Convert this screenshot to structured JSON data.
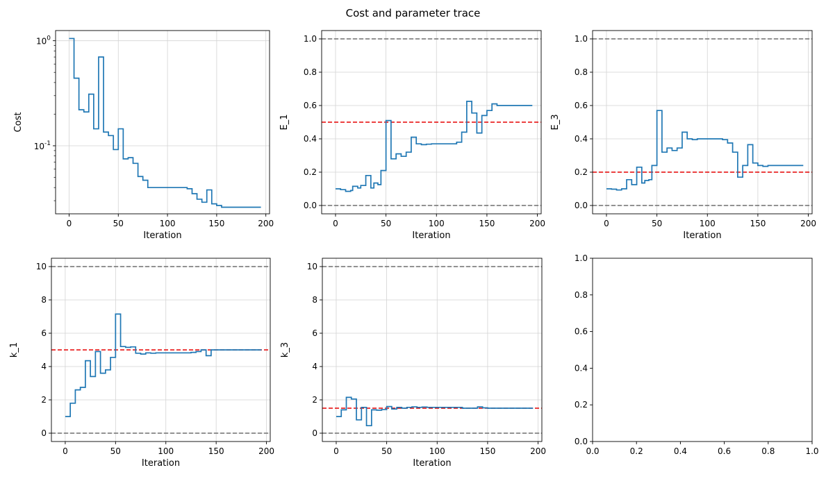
{
  "figure": {
    "title": "Cost and parameter trace"
  },
  "colors": {
    "series": "#1f77b4",
    "target": "#e60000",
    "bound": "#6e6e6e",
    "grid": "#d3d3d3"
  },
  "chart_data": [
    {
      "id": "cost",
      "type": "line",
      "xlabel": "Iteration",
      "ylabel": "Cost",
      "yscale": "log",
      "xlim": [
        -13.75,
        203.75
      ],
      "ylim": [
        0.0225,
        1.25
      ],
      "xticks": [
        0,
        50,
        100,
        150,
        200
      ],
      "xtick_labels": [
        "0",
        "50",
        "100",
        "150",
        "200"
      ],
      "yticks": [
        1.0,
        0.1
      ],
      "ytick_labels": [
        "10^0",
        "10^-1"
      ],
      "grid": true,
      "hlines": [],
      "series": [
        {
          "step": true,
          "points": [
            [
              0,
              1.05
            ],
            [
              5,
              0.44
            ],
            [
              10,
              0.22
            ],
            [
              15,
              0.21
            ],
            [
              20,
              0.31
            ],
            [
              25,
              0.145
            ],
            [
              30,
              0.7
            ],
            [
              35,
              0.135
            ],
            [
              40,
              0.125
            ],
            [
              45,
              0.092
            ],
            [
              50,
              0.145
            ],
            [
              55,
              0.075
            ],
            [
              60,
              0.077
            ],
            [
              65,
              0.068
            ],
            [
              70,
              0.051
            ],
            [
              75,
              0.047
            ],
            [
              80,
              0.04
            ],
            [
              120,
              0.039
            ],
            [
              125,
              0.035
            ],
            [
              130,
              0.031
            ],
            [
              135,
              0.029
            ],
            [
              140,
              0.038
            ],
            [
              145,
              0.028
            ],
            [
              150,
              0.027
            ],
            [
              155,
              0.026
            ],
            [
              195,
              0.026
            ]
          ]
        }
      ]
    },
    {
      "id": "E_1",
      "type": "line",
      "xlabel": "Iteration",
      "ylabel": "E_1",
      "xlim": [
        -13.75,
        203.75
      ],
      "ylim": [
        -0.05,
        1.05
      ],
      "xticks": [
        0,
        50,
        100,
        150,
        200
      ],
      "xtick_labels": [
        "0",
        "50",
        "100",
        "150",
        "200"
      ],
      "yticks": [
        0,
        0.2,
        0.4,
        0.6,
        0.8,
        1.0
      ],
      "ytick_labels": [
        "0.0",
        "0.2",
        "0.4",
        "0.6",
        "0.8",
        "1.0"
      ],
      "grid": true,
      "hlines": [
        {
          "y": 1.0,
          "kind": "bound"
        },
        {
          "y": 0.0,
          "kind": "bound"
        },
        {
          "y": 0.5,
          "kind": "target"
        }
      ],
      "series": [
        {
          "step": true,
          "points": [
            [
              0,
              0.1
            ],
            [
              5,
              0.095
            ],
            [
              10,
              0.085
            ],
            [
              15,
              0.09
            ],
            [
              17,
              0.115
            ],
            [
              22,
              0.105
            ],
            [
              25,
              0.12
            ],
            [
              30,
              0.18
            ],
            [
              35,
              0.105
            ],
            [
              38,
              0.135
            ],
            [
              42,
              0.125
            ],
            [
              45,
              0.21
            ],
            [
              50,
              0.51
            ],
            [
              55,
              0.28
            ],
            [
              60,
              0.31
            ],
            [
              65,
              0.295
            ],
            [
              70,
              0.32
            ],
            [
              75,
              0.41
            ],
            [
              80,
              0.37
            ],
            [
              85,
              0.365
            ],
            [
              90,
              0.368
            ],
            [
              95,
              0.37
            ],
            [
              120,
              0.38
            ],
            [
              125,
              0.44
            ],
            [
              130,
              0.625
            ],
            [
              135,
              0.555
            ],
            [
              140,
              0.435
            ],
            [
              145,
              0.54
            ],
            [
              150,
              0.57
            ],
            [
              155,
              0.61
            ],
            [
              160,
              0.6
            ],
            [
              195,
              0.6
            ]
          ]
        }
      ]
    },
    {
      "id": "E_3",
      "type": "line",
      "xlabel": "Iteration",
      "ylabel": "E_3",
      "xlim": [
        -13.75,
        203.75
      ],
      "ylim": [
        -0.05,
        1.05
      ],
      "xticks": [
        0,
        50,
        100,
        150,
        200
      ],
      "xtick_labels": [
        "0",
        "50",
        "100",
        "150",
        "200"
      ],
      "yticks": [
        0,
        0.2,
        0.4,
        0.6,
        0.8,
        1.0
      ],
      "ytick_labels": [
        "0.0",
        "0.2",
        "0.4",
        "0.6",
        "0.8",
        "1.0"
      ],
      "grid": true,
      "hlines": [
        {
          "y": 1.0,
          "kind": "bound"
        },
        {
          "y": 0.0,
          "kind": "bound"
        },
        {
          "y": 0.2,
          "kind": "target"
        }
      ],
      "series": [
        {
          "step": true,
          "points": [
            [
              0,
              0.1
            ],
            [
              5,
              0.098
            ],
            [
              10,
              0.093
            ],
            [
              15,
              0.1
            ],
            [
              20,
              0.155
            ],
            [
              25,
              0.125
            ],
            [
              30,
              0.23
            ],
            [
              35,
              0.135
            ],
            [
              38,
              0.15
            ],
            [
              42,
              0.155
            ],
            [
              45,
              0.24
            ],
            [
              50,
              0.57
            ],
            [
              55,
              0.32
            ],
            [
              60,
              0.345
            ],
            [
              65,
              0.33
            ],
            [
              70,
              0.345
            ],
            [
              75,
              0.44
            ],
            [
              80,
              0.4
            ],
            [
              85,
              0.395
            ],
            [
              90,
              0.4
            ],
            [
              115,
              0.395
            ],
            [
              120,
              0.375
            ],
            [
              125,
              0.32
            ],
            [
              130,
              0.17
            ],
            [
              135,
              0.24
            ],
            [
              140,
              0.365
            ],
            [
              145,
              0.255
            ],
            [
              150,
              0.24
            ],
            [
              155,
              0.235
            ],
            [
              160,
              0.24
            ],
            [
              195,
              0.24
            ]
          ]
        }
      ]
    },
    {
      "id": "k_1",
      "type": "line",
      "xlabel": "Iteration",
      "ylabel": "k_1",
      "xlim": [
        -13.75,
        203.75
      ],
      "ylim": [
        -0.5,
        10.5
      ],
      "xticks": [
        0,
        50,
        100,
        150,
        200
      ],
      "xtick_labels": [
        "0",
        "50",
        "100",
        "150",
        "200"
      ],
      "yticks": [
        0,
        2,
        4,
        6,
        8,
        10
      ],
      "ytick_labels": [
        "0",
        "2",
        "4",
        "6",
        "8",
        "10"
      ],
      "grid": true,
      "hlines": [
        {
          "y": 10,
          "kind": "bound"
        },
        {
          "y": 0,
          "kind": "bound"
        },
        {
          "y": 5,
          "kind": "target"
        }
      ],
      "series": [
        {
          "step": true,
          "points": [
            [
              0,
              1.0
            ],
            [
              5,
              1.8
            ],
            [
              10,
              2.6
            ],
            [
              15,
              2.75
            ],
            [
              20,
              4.35
            ],
            [
              25,
              3.4
            ],
            [
              30,
              4.9
            ],
            [
              35,
              3.6
            ],
            [
              40,
              3.8
            ],
            [
              45,
              4.55
            ],
            [
              50,
              7.15
            ],
            [
              55,
              5.2
            ],
            [
              60,
              5.15
            ],
            [
              65,
              5.18
            ],
            [
              70,
              4.8
            ],
            [
              75,
              4.75
            ],
            [
              80,
              4.82
            ],
            [
              85,
              4.8
            ],
            [
              90,
              4.82
            ],
            [
              125,
              4.85
            ],
            [
              130,
              4.9
            ],
            [
              135,
              5.0
            ],
            [
              140,
              4.65
            ],
            [
              145,
              5.0
            ],
            [
              195,
              5.0
            ]
          ]
        }
      ]
    },
    {
      "id": "k_3",
      "type": "line",
      "xlabel": "Iteration",
      "ylabel": "k_3",
      "xlim": [
        -13.75,
        203.75
      ],
      "ylim": [
        -0.5,
        10.5
      ],
      "xticks": [
        0,
        50,
        100,
        150,
        200
      ],
      "xtick_labels": [
        "0",
        "50",
        "100",
        "150",
        "200"
      ],
      "yticks": [
        0,
        2,
        4,
        6,
        8,
        10
      ],
      "ytick_labels": [
        "0",
        "2",
        "4",
        "6",
        "8",
        "10"
      ],
      "grid": true,
      "hlines": [
        {
          "y": 10,
          "kind": "bound"
        },
        {
          "y": 0,
          "kind": "bound"
        },
        {
          "y": 1.5,
          "kind": "target"
        }
      ],
      "series": [
        {
          "step": true,
          "points": [
            [
              0,
              1.0
            ],
            [
              5,
              1.4
            ],
            [
              10,
              2.15
            ],
            [
              15,
              2.05
            ],
            [
              20,
              0.8
            ],
            [
              25,
              1.55
            ],
            [
              30,
              0.45
            ],
            [
              35,
              1.4
            ],
            [
              40,
              1.38
            ],
            [
              45,
              1.42
            ],
            [
              50,
              1.6
            ],
            [
              55,
              1.45
            ],
            [
              60,
              1.55
            ],
            [
              65,
              1.5
            ],
            [
              70,
              1.55
            ],
            [
              75,
              1.58
            ],
            [
              80,
              1.55
            ],
            [
              85,
              1.57
            ],
            [
              90,
              1.55
            ],
            [
              125,
              1.5
            ],
            [
              140,
              1.58
            ],
            [
              145,
              1.52
            ],
            [
              150,
              1.5
            ],
            [
              195,
              1.5
            ]
          ]
        }
      ]
    },
    {
      "id": "empty",
      "type": "line",
      "xlabel": "",
      "ylabel": "",
      "xlim": [
        0,
        1
      ],
      "ylim": [
        0,
        1
      ],
      "xticks": [
        0,
        0.2,
        0.4,
        0.6,
        0.8,
        1.0
      ],
      "xtick_labels": [
        "0.0",
        "0.2",
        "0.4",
        "0.6",
        "0.8",
        "1.0"
      ],
      "yticks": [
        0,
        0.2,
        0.4,
        0.6,
        0.8,
        1.0
      ],
      "ytick_labels": [
        "0.0",
        "0.2",
        "0.4",
        "0.6",
        "0.8",
        "1.0"
      ],
      "grid": false,
      "hlines": [],
      "series": []
    }
  ]
}
